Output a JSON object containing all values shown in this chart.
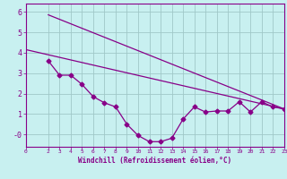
{
  "title": "",
  "xlabel": "Windchill (Refroidissement éolien,°C)",
  "ylabel": "",
  "bg_color": "#c8f0f0",
  "grid_color": "#a0c8c8",
  "line_color": "#880088",
  "xlim": [
    0,
    23
  ],
  "ylim": [
    -0.6,
    6.4
  ],
  "yticks": [
    0,
    1,
    2,
    3,
    4,
    5,
    6
  ],
  "ytick_labels": [
    "-0",
    "1",
    "2",
    "3",
    "4",
    "5",
    "6"
  ],
  "xticks": [
    0,
    2,
    3,
    4,
    5,
    6,
    7,
    8,
    9,
    10,
    11,
    12,
    13,
    14,
    15,
    16,
    17,
    18,
    19,
    20,
    21,
    22,
    23
  ],
  "line1_x": [
    0,
    23
  ],
  "line1_y": [
    4.15,
    1.25
  ],
  "line2_x": [
    2,
    23
  ],
  "line2_y": [
    5.85,
    1.25
  ],
  "data_x": [
    2,
    3,
    4,
    5,
    6,
    7,
    8,
    9,
    10,
    11,
    12,
    13,
    14,
    15,
    16,
    17,
    18,
    19,
    20,
    21,
    22,
    23
  ],
  "data_y": [
    3.6,
    2.9,
    2.9,
    2.45,
    1.85,
    1.55,
    1.35,
    0.5,
    -0.05,
    -0.35,
    -0.35,
    -0.18,
    0.75,
    1.35,
    1.1,
    1.15,
    1.15,
    1.6,
    1.1,
    1.6,
    1.35,
    1.25
  ]
}
